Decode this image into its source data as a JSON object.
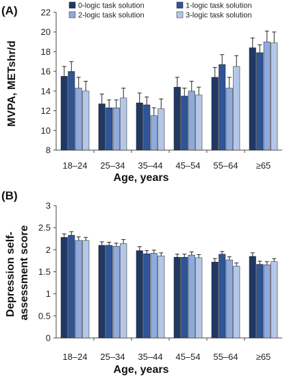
{
  "chart_data": [
    {
      "type": "bar",
      "panel_label": "(A)",
      "panel_letter": "A",
      "title": "",
      "xlabel": "Age, years",
      "ylabel": "MVPA,  METshr/d",
      "ylim": [
        8,
        22
      ],
      "yticks": [
        "8",
        "10",
        "12",
        "14",
        "16",
        "18",
        "20",
        "22"
      ],
      "grid": false,
      "legend_position": "top",
      "categories": [
        "18–24",
        "25–34",
        "35–44",
        "45–54",
        "55–64",
        "≥65"
      ],
      "series": [
        {
          "name": "0-logic task solution",
          "color": "#1f3864",
          "values": [
            15.5,
            12.7,
            12.8,
            14.4,
            15.4,
            18.4
          ],
          "errors": [
            1.0,
            1.0,
            1.0,
            1.0,
            1.0,
            1.0
          ]
        },
        {
          "name": "1-logic task solution",
          "color": "#2f5597",
          "values": [
            16.0,
            12.3,
            12.6,
            13.5,
            16.7,
            17.9
          ],
          "errors": [
            1.0,
            0.8,
            0.8,
            0.8,
            1.0,
            0.8
          ]
        },
        {
          "name": "2-logic task solution",
          "color": "#8faadc",
          "values": [
            14.3,
            12.3,
            11.5,
            14.0,
            14.3,
            19.0
          ],
          "errors": [
            1.1,
            0.8,
            0.8,
            1.0,
            1.1,
            1.1
          ]
        },
        {
          "name": "3-logic task solution",
          "color": "#b4c7e7",
          "values": [
            14.0,
            13.3,
            12.2,
            13.6,
            16.5,
            18.9
          ],
          "errors": [
            1.0,
            1.0,
            1.0,
            0.8,
            1.1,
            1.1
          ]
        }
      ]
    },
    {
      "type": "bar",
      "panel_label": "(B)",
      "panel_letter": "B",
      "title": "",
      "xlabel": "Age, years",
      "ylabel": "Depression self-assessment score",
      "ylabel_lines": [
        "Depression self-",
        "assessment score"
      ],
      "ylim": [
        0,
        3
      ],
      "yticks": [
        "0",
        "0.5",
        "1",
        "1.5",
        "2",
        "2.5",
        "3"
      ],
      "grid": false,
      "categories": [
        "18–24",
        "25–34",
        "35–44",
        "45–54",
        "55–64",
        "≥65"
      ],
      "series": [
        {
          "name": "0-logic task solution",
          "color": "#1f3864",
          "values": [
            2.28,
            2.1,
            1.98,
            1.83,
            1.72,
            1.85
          ],
          "errors": [
            0.08,
            0.08,
            0.09,
            0.07,
            0.08,
            0.08
          ]
        },
        {
          "name": "1-logic task solution",
          "color": "#2f5597",
          "values": [
            2.33,
            2.1,
            1.91,
            1.83,
            1.9,
            1.67
          ],
          "errors": [
            0.08,
            0.07,
            0.07,
            0.07,
            0.06,
            0.07
          ]
        },
        {
          "name": "2-logic task solution",
          "color": "#8faadc",
          "values": [
            2.21,
            2.08,
            1.92,
            1.88,
            1.77,
            1.66
          ],
          "errors": [
            0.08,
            0.07,
            0.07,
            0.07,
            0.07,
            0.07
          ]
        },
        {
          "name": "3-logic task solution",
          "color": "#b4c7e7",
          "values": [
            2.21,
            2.14,
            1.86,
            1.82,
            1.63,
            1.73
          ],
          "errors": [
            0.07,
            0.09,
            0.07,
            0.07,
            0.07,
            0.07
          ]
        }
      ]
    }
  ]
}
